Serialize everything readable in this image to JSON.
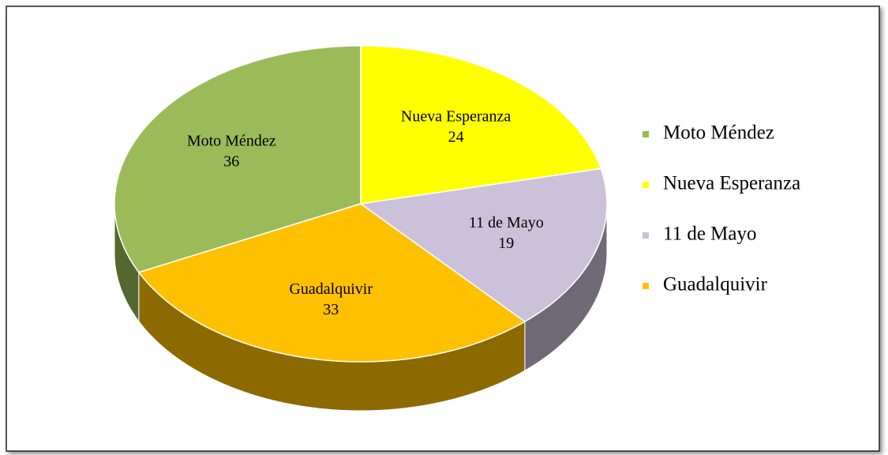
{
  "chart_data": {
    "type": "pie",
    "categories": [
      "Moto Méndez",
      "Nueva Esperanza",
      "11 de Mayo",
      "Guadalquivir"
    ],
    "values": [
      36,
      24,
      19,
      33
    ],
    "colors": [
      "#9bbb59",
      "#ffff00",
      "#ccc1da",
      "#ffc000"
    ],
    "legend": "right"
  }
}
